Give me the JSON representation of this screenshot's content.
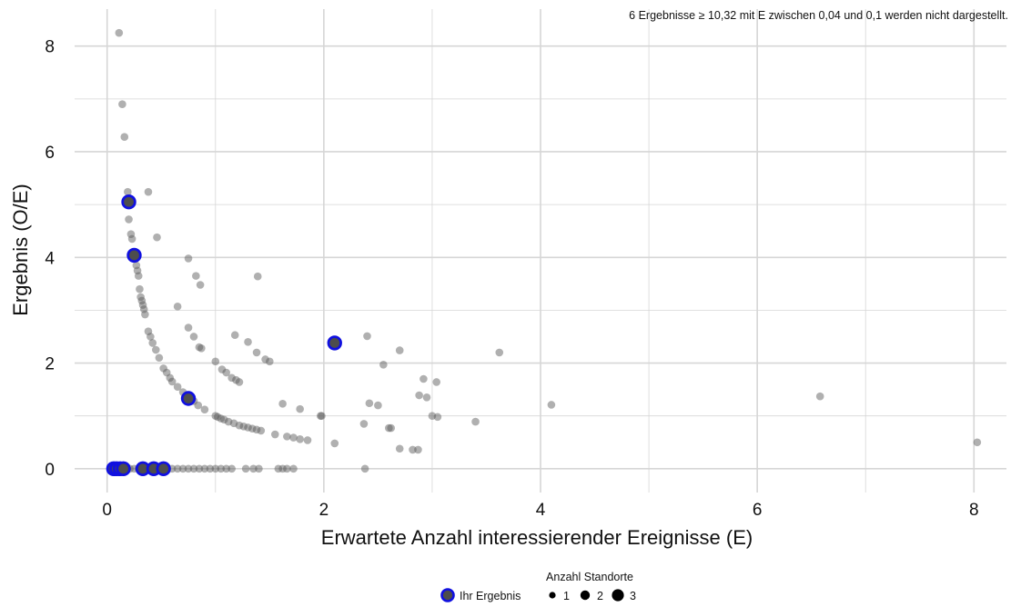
{
  "chart_data": {
    "type": "scatter",
    "title": "",
    "annotation": "6 Ergebnisse ≥ 10,32 mit E zwischen 0,04 und 0,1 werden nicht dargestellt.",
    "xlabel": "Erwartete Anzahl interessierender Ereignisse (E)",
    "ylabel": "Ergebnis (O/E)",
    "xlim": [
      -0.3,
      8.3
    ],
    "ylim": [
      -0.45,
      8.7
    ],
    "x_ticks": [
      0,
      2,
      4,
      6,
      8
    ],
    "x_tick_labels": [
      "0",
      "2",
      "4",
      "6",
      "8"
    ],
    "y_ticks": [
      0,
      2,
      4,
      6,
      8
    ],
    "y_tick_labels": [
      "0",
      "2",
      "4",
      "6",
      "8"
    ],
    "grid": true,
    "legend": {
      "position": "bottom",
      "title": "Anzahl Standorte",
      "highlight_label": "Ihr Ergebnis",
      "size_labels": [
        "1",
        "2",
        "3"
      ]
    },
    "colors": {
      "points": "#5a5a5a",
      "highlight_fill": "#4d4d4d",
      "highlight_stroke": "#1010e0",
      "grid": "#d6d6d6"
    },
    "series": [
      {
        "role": "other-sites",
        "points": [
          [
            0.11,
            8.25
          ],
          [
            0.14,
            6.9
          ],
          [
            0.16,
            6.28
          ],
          [
            0.38,
            5.24
          ],
          [
            0.19,
            5.24
          ],
          [
            0.2,
            4.72
          ],
          [
            0.22,
            4.44
          ],
          [
            0.23,
            4.35
          ],
          [
            0.46,
            4.38
          ],
          [
            0.26,
            4.05
          ],
          [
            0.27,
            3.85
          ],
          [
            0.28,
            3.75
          ],
          [
            0.29,
            3.65
          ],
          [
            0.3,
            3.4
          ],
          [
            0.31,
            3.25
          ],
          [
            0.32,
            3.18
          ],
          [
            0.33,
            3.1
          ],
          [
            0.34,
            3.02
          ],
          [
            0.35,
            2.92
          ],
          [
            0.38,
            2.6
          ],
          [
            0.4,
            2.5
          ],
          [
            0.42,
            2.38
          ],
          [
            0.45,
            2.25
          ],
          [
            0.48,
            2.1
          ],
          [
            0.52,
            1.9
          ],
          [
            0.55,
            1.82
          ],
          [
            0.58,
            1.72
          ],
          [
            0.6,
            1.65
          ],
          [
            0.65,
            1.55
          ],
          [
            0.7,
            1.45
          ],
          [
            0.75,
            3.98
          ],
          [
            0.82,
            3.65
          ],
          [
            0.86,
            3.48
          ],
          [
            0.65,
            3.07
          ],
          [
            0.75,
            2.67
          ],
          [
            0.8,
            2.5
          ],
          [
            0.85,
            2.3
          ],
          [
            0.87,
            2.28
          ],
          [
            0.8,
            1.28
          ],
          [
            0.84,
            1.2
          ],
          [
            0.9,
            1.12
          ],
          [
            1.0,
            1.0
          ],
          [
            1.02,
            0.98
          ],
          [
            1.05,
            0.95
          ],
          [
            1.08,
            0.93
          ],
          [
            1.12,
            0.89
          ],
          [
            1.17,
            0.86
          ],
          [
            1.22,
            0.82
          ],
          [
            1.26,
            0.8
          ],
          [
            1.3,
            0.78
          ],
          [
            1.34,
            0.76
          ],
          [
            1.38,
            0.74
          ],
          [
            1.42,
            0.72
          ],
          [
            1.55,
            0.65
          ],
          [
            1.66,
            0.61
          ],
          [
            1.72,
            0.59
          ],
          [
            1.78,
            0.56
          ],
          [
            1.85,
            0.54
          ],
          [
            1.0,
            2.03
          ],
          [
            1.06,
            1.88
          ],
          [
            1.1,
            1.82
          ],
          [
            1.15,
            1.72
          ],
          [
            1.19,
            1.68
          ],
          [
            1.22,
            1.64
          ],
          [
            1.18,
            2.53
          ],
          [
            1.3,
            2.4
          ],
          [
            1.38,
            2.2
          ],
          [
            1.46,
            2.07
          ],
          [
            1.5,
            2.03
          ],
          [
            1.39,
            3.64
          ],
          [
            1.62,
            1.23
          ],
          [
            1.78,
            1.13
          ],
          [
            1.97,
            1.0
          ],
          [
            1.98,
            1.0
          ],
          [
            2.1,
            0.48
          ],
          [
            2.37,
            0.85
          ],
          [
            2.4,
            2.51
          ],
          [
            2.42,
            1.24
          ],
          [
            2.5,
            1.2
          ],
          [
            2.55,
            1.97
          ],
          [
            2.6,
            0.77
          ],
          [
            2.62,
            0.77
          ],
          [
            2.7,
            2.24
          ],
          [
            2.7,
            0.38
          ],
          [
            2.82,
            0.36
          ],
          [
            2.87,
            0.36
          ],
          [
            2.88,
            1.39
          ],
          [
            2.92,
            1.7
          ],
          [
            2.95,
            1.35
          ],
          [
            3.0,
            1.0
          ],
          [
            3.05,
            0.98
          ],
          [
            3.04,
            1.64
          ],
          [
            3.4,
            0.89
          ],
          [
            3.62,
            2.2
          ],
          [
            4.1,
            1.21
          ],
          [
            6.58,
            1.37
          ],
          [
            8.03,
            0.5
          ],
          [
            0.03,
            0
          ],
          [
            0.06,
            0
          ],
          [
            0.09,
            0
          ],
          [
            0.12,
            0
          ],
          [
            0.15,
            0
          ],
          [
            0.18,
            0
          ],
          [
            0.21,
            0
          ],
          [
            0.25,
            0
          ],
          [
            0.29,
            0
          ],
          [
            0.33,
            0
          ],
          [
            0.37,
            0
          ],
          [
            0.41,
            0
          ],
          [
            0.46,
            0
          ],
          [
            0.5,
            0
          ],
          [
            0.55,
            0
          ],
          [
            0.6,
            0
          ],
          [
            0.65,
            0
          ],
          [
            0.7,
            0
          ],
          [
            0.75,
            0
          ],
          [
            0.8,
            0
          ],
          [
            0.85,
            0
          ],
          [
            0.9,
            0
          ],
          [
            0.95,
            0
          ],
          [
            1.0,
            0
          ],
          [
            1.05,
            0
          ],
          [
            1.1,
            0
          ],
          [
            1.15,
            0
          ],
          [
            1.28,
            0
          ],
          [
            1.35,
            0
          ],
          [
            1.4,
            0
          ],
          [
            1.58,
            0
          ],
          [
            1.62,
            0
          ],
          [
            1.66,
            0
          ],
          [
            1.72,
            0
          ],
          [
            2.38,
            0
          ]
        ]
      },
      {
        "role": "own-result",
        "name": "Ihr Ergebnis",
        "points": [
          [
            0.2,
            5.05
          ],
          [
            0.25,
            4.04
          ],
          [
            0.75,
            1.33
          ],
          [
            2.1,
            2.38
          ],
          [
            0.06,
            0
          ],
          [
            0.09,
            0
          ],
          [
            0.12,
            0
          ],
          [
            0.15,
            0
          ],
          [
            0.33,
            0
          ],
          [
            0.43,
            0
          ],
          [
            0.52,
            0
          ]
        ]
      }
    ]
  }
}
